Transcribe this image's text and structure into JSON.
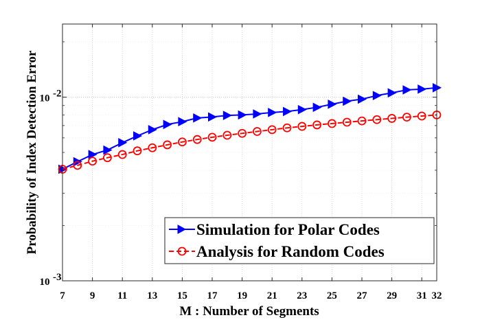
{
  "chart_data": {
    "type": "line",
    "title": "",
    "xlabel": "M : Number of Segments",
    "ylabel": "Probability of Index Detection Error",
    "xlim": [
      7,
      32
    ],
    "ylim": [
      0.001,
      0.025
    ],
    "yscale": "log",
    "grid": true,
    "x": [
      7,
      8,
      9,
      10,
      11,
      12,
      13,
      14,
      15,
      16,
      17,
      18,
      19,
      20,
      21,
      22,
      23,
      24,
      25,
      26,
      27,
      28,
      29,
      30,
      31,
      32
    ],
    "x_ticks": [
      7,
      9,
      11,
      13,
      15,
      17,
      19,
      21,
      23,
      25,
      27,
      29,
      31,
      32
    ],
    "x_tick_labels": [
      "7",
      "9",
      "11",
      "13",
      "15",
      "17",
      "19",
      "21",
      "23",
      "25",
      "27",
      "29",
      "31",
      "32"
    ],
    "y_ticks": [
      {
        "value": 0.01,
        "base": "10",
        "exp": "-2"
      },
      {
        "value": 0.001,
        "base": "10",
        "exp": "-3"
      }
    ],
    "legend_position": "bottom-right",
    "series": [
      {
        "name": "Simulation for Polar Codes",
        "color": "#0000ff",
        "marker": "triangle-right",
        "values": [
          0.00405,
          0.00445,
          0.00487,
          0.00515,
          0.00565,
          0.00615,
          0.00665,
          0.0071,
          0.00735,
          0.0077,
          0.0078,
          0.00795,
          0.008,
          0.0081,
          0.00825,
          0.00835,
          0.00855,
          0.0088,
          0.00915,
          0.0095,
          0.00975,
          0.0102,
          0.01055,
          0.01095,
          0.01105,
          0.01125
        ]
      },
      {
        "name": "Analysis for Random Codes",
        "color": "#ff0000",
        "marker": "circle",
        "values": [
          0.00405,
          0.00425,
          0.00448,
          0.00468,
          0.00487,
          0.0051,
          0.0053,
          0.0055,
          0.0057,
          0.00588,
          0.00605,
          0.0062,
          0.00635,
          0.0065,
          0.00665,
          0.0068,
          0.00693,
          0.00706,
          0.00718,
          0.0073,
          0.00742,
          0.00754,
          0.00766,
          0.00778,
          0.00789,
          0.008
        ]
      }
    ]
  }
}
